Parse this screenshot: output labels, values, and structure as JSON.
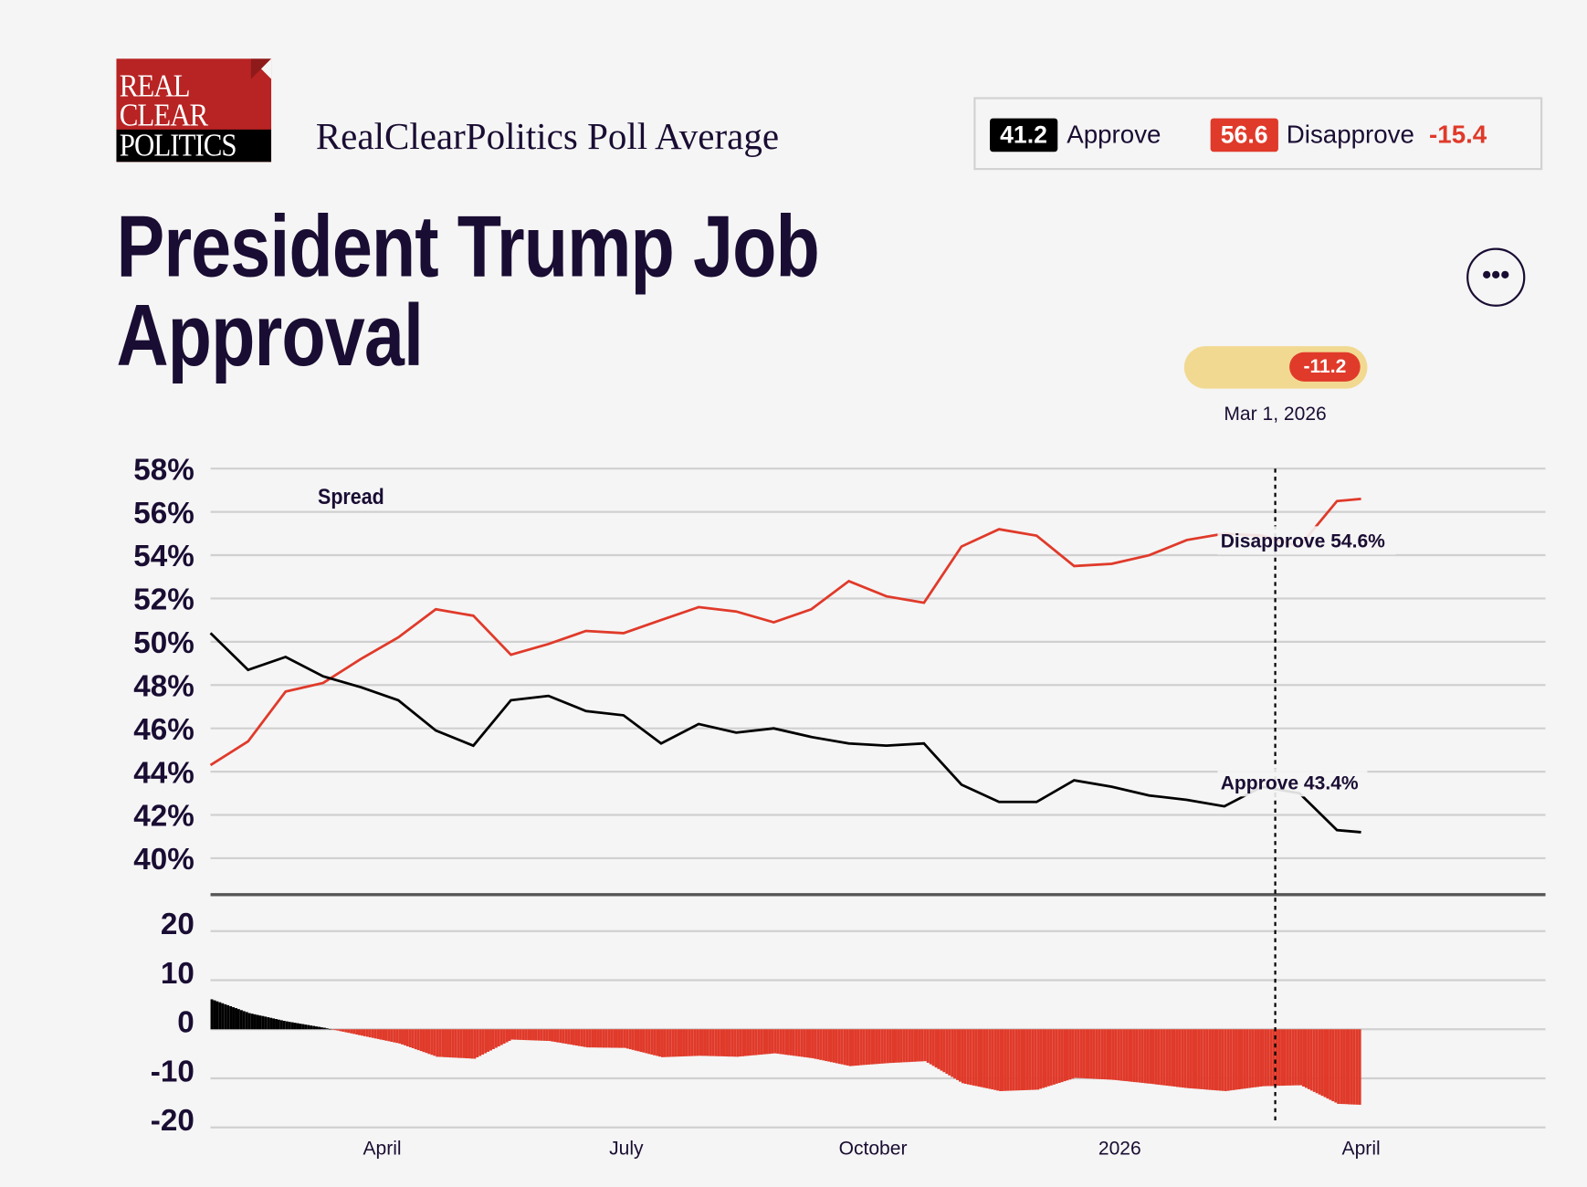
{
  "logo": {
    "lines": [
      "REAL",
      "CLEAR",
      "POLITICS"
    ]
  },
  "header": {
    "subtitle": "RealClearPolitics Poll Average",
    "title_line1": "President Trump Job",
    "title_line2": "Approval"
  },
  "summary": {
    "approve_value": "41.2",
    "approve_label": "Approve",
    "disapprove_value": "56.6",
    "disapprove_label": "Disapprove",
    "spread": "-15.4"
  },
  "more_button": {
    "icon": "ellipsis-icon",
    "label": "•••"
  },
  "hover": {
    "spread": "-11.2",
    "date": "Mar 1, 2026",
    "disapprove_label": "Disapprove 54.6%",
    "approve_label": "Approve 43.4%"
  },
  "colors": {
    "approve": "#000000",
    "disapprove": "#e03a2a",
    "pill": "#f2d991",
    "text": "#1a0d33"
  },
  "chart_data": [
    {
      "type": "line",
      "y_ticks": [
        "58%",
        "56%",
        "54%",
        "52%",
        "50%",
        "48%",
        "46%",
        "44%",
        "42%",
        "40%"
      ],
      "ylim": [
        40,
        58
      ],
      "x_ticks": [
        {
          "date": "2025-04-01",
          "label": "April"
        },
        {
          "date": "2025-07-01",
          "label": "July"
        },
        {
          "date": "2025-10-01",
          "label": "October"
        },
        {
          "date": "2026-01-01",
          "label": "2026"
        },
        {
          "date": "2026-04-01",
          "label": "April"
        }
      ],
      "grid": true,
      "x": [
        "2025-01-27",
        "2025-02-10",
        "2025-02-24",
        "2025-03-10",
        "2025-03-24",
        "2025-04-07",
        "2025-04-21",
        "2025-05-05",
        "2025-05-19",
        "2025-06-02",
        "2025-06-16",
        "2025-06-30",
        "2025-07-14",
        "2025-07-28",
        "2025-08-11",
        "2025-08-25",
        "2025-09-08",
        "2025-09-22",
        "2025-10-06",
        "2025-10-20",
        "2025-11-03",
        "2025-11-17",
        "2025-12-01",
        "2025-12-15",
        "2025-12-29",
        "2026-01-12",
        "2026-01-26",
        "2026-02-09",
        "2026-02-23",
        "2026-03-09",
        "2026-03-23",
        "2026-04-01"
      ],
      "series": [
        {
          "name": "Disapprove",
          "values": [
            44.3,
            45.4,
            47.7,
            48.1,
            49.2,
            50.2,
            51.5,
            51.2,
            49.4,
            49.9,
            50.5,
            50.4,
            51.0,
            51.6,
            51.4,
            50.9,
            51.5,
            52.8,
            52.1,
            51.8,
            54.4,
            55.2,
            54.9,
            53.5,
            53.6,
            54.0,
            54.7,
            55.0,
            54.9,
            54.4,
            56.5,
            56.6
          ]
        },
        {
          "name": "Approve",
          "values": [
            50.4,
            48.7,
            49.3,
            48.4,
            47.9,
            47.3,
            45.9,
            45.2,
            47.3,
            47.5,
            46.8,
            46.6,
            45.3,
            46.2,
            45.8,
            46.0,
            45.6,
            45.3,
            45.2,
            45.3,
            43.4,
            42.6,
            42.6,
            43.6,
            43.3,
            42.9,
            42.7,
            42.4,
            43.3,
            43.0,
            41.3,
            41.2
          ]
        }
      ]
    },
    {
      "type": "bar",
      "title": "Spread",
      "y_ticks": [
        "20",
        "10",
        "0",
        "-10",
        "-20"
      ],
      "ylim": [
        -20,
        20
      ],
      "values_note_free": true,
      "derived_from": "Approve minus Disapprove"
    }
  ]
}
